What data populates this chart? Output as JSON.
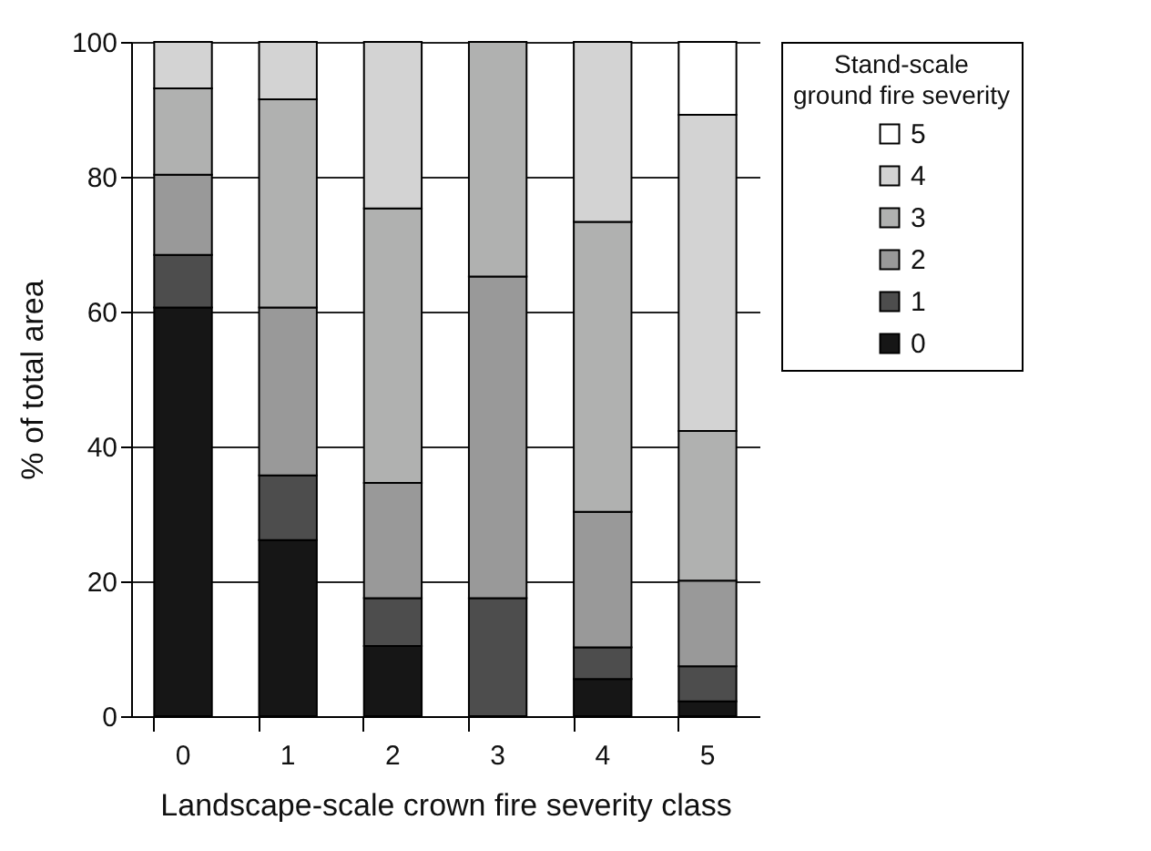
{
  "chart_data": {
    "type": "bar",
    "stacked": true,
    "xlabel": "Landscape-scale crown fire severity class",
    "ylabel": "% of total area",
    "legend_title": "Stand-scale\nground fire severity",
    "legend": "right",
    "grid": "y",
    "categories": [
      "0",
      "1",
      "2",
      "3",
      "4",
      "5"
    ],
    "ylim": [
      0,
      100
    ],
    "yticks": [
      0,
      20,
      40,
      60,
      80,
      100
    ],
    "series": [
      {
        "name": "0",
        "color": "#161616",
        "values": [
          60.6,
          26.1,
          10.4,
          0,
          5.5,
          2.2
        ]
      },
      {
        "name": "1",
        "color": "#4d4d4d",
        "values": [
          7.8,
          9.6,
          7.1,
          17.5,
          4.7,
          5.2
        ]
      },
      {
        "name": "2",
        "color": "#999999",
        "values": [
          11.9,
          24.9,
          17.1,
          47.7,
          20.1,
          12.7
        ]
      },
      {
        "name": "3",
        "color": "#b0b1b0",
        "values": [
          12.8,
          30.9,
          40.7,
          34.8,
          43.0,
          22.2
        ]
      },
      {
        "name": "4",
        "color": "#d3d3d3",
        "values": [
          6.9,
          8.5,
          24.7,
          0,
          26.7,
          46.9
        ]
      },
      {
        "name": "5",
        "color": "#ffffff",
        "values": [
          0,
          0,
          0,
          0,
          0,
          10.8
        ]
      }
    ]
  }
}
